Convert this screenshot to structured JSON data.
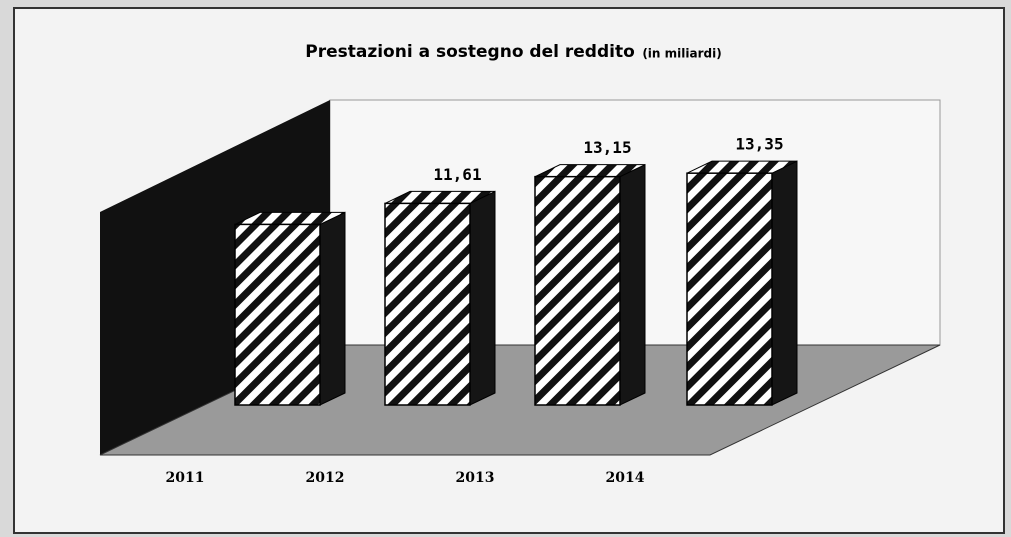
{
  "chart_data": {
    "type": "bar3d",
    "title": "Prestazioni a sostegno del reddito",
    "subtitle": "(in miliardi)",
    "categories": [
      "2011",
      "2012",
      "2013",
      "2014"
    ],
    "values": [
      10.4,
      11.61,
      13.15,
      13.35
    ],
    "value_labels": [
      null,
      "11,61",
      "13,15",
      "13,35"
    ],
    "color": "#ffffff"
  }
}
